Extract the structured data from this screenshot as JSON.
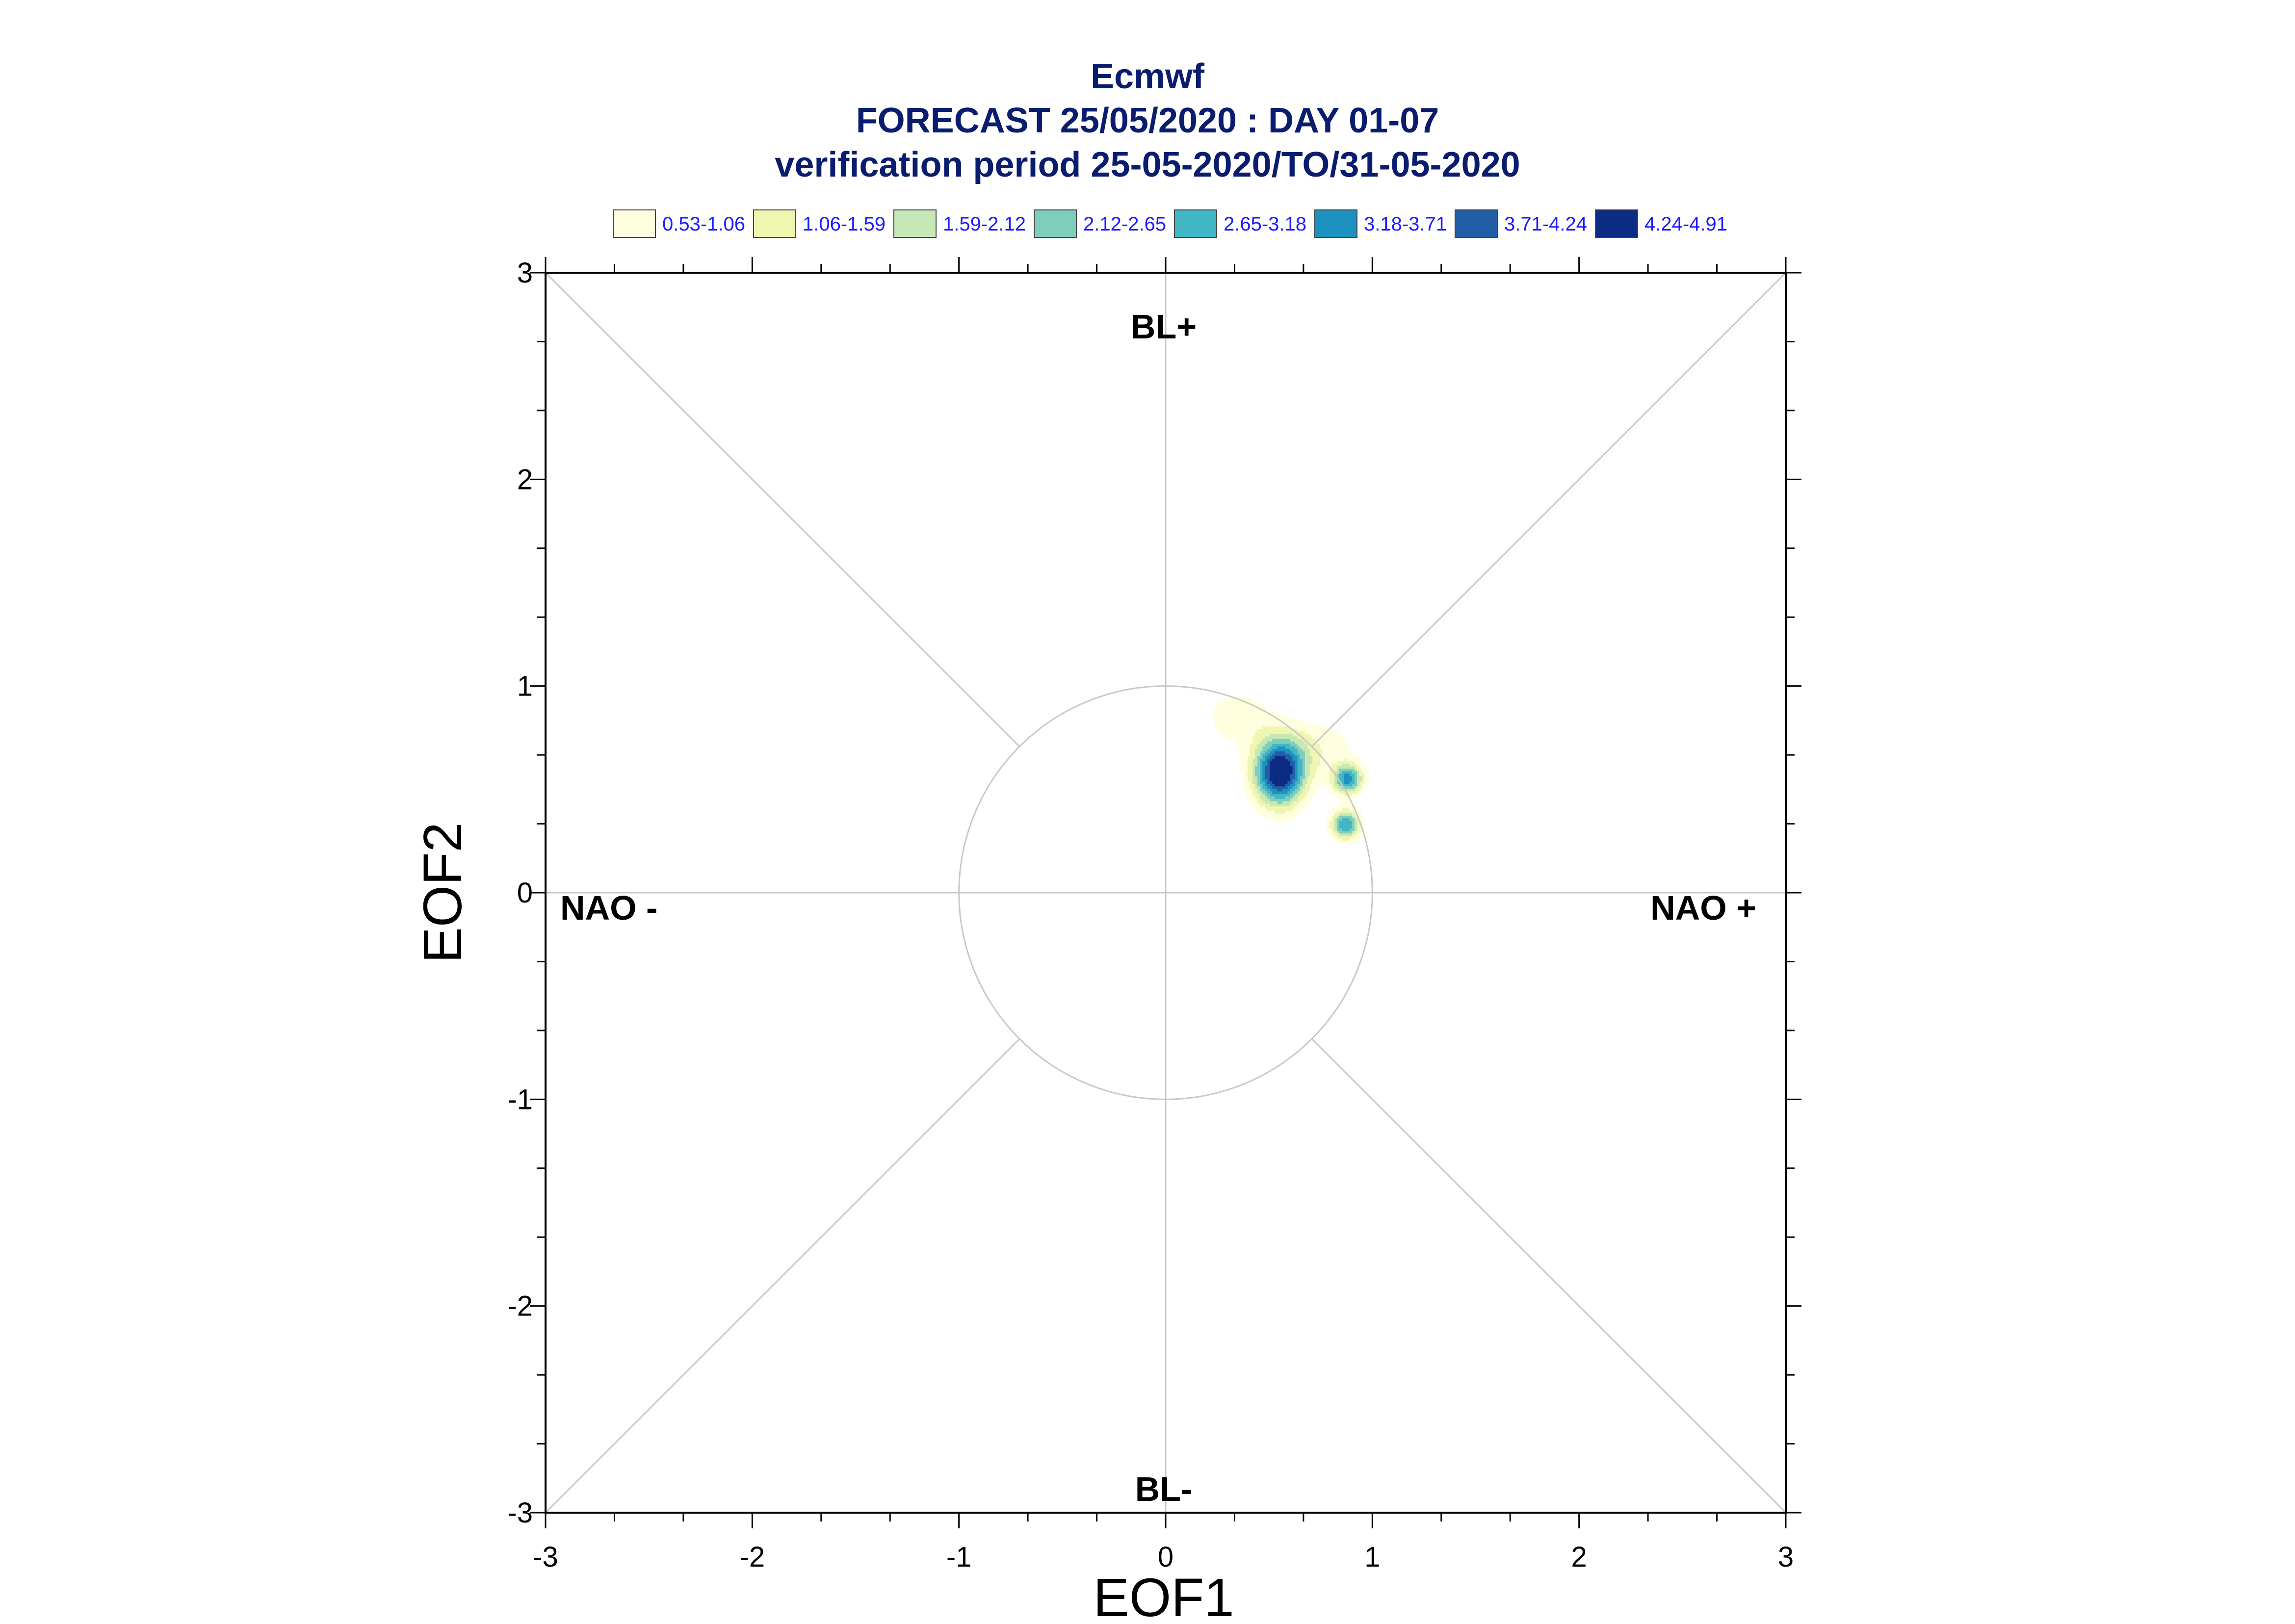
{
  "chart_data": {
    "type": "contour",
    "title_lines": [
      "Ecmwf",
      "FORECAST 25/05/2020 : DAY 01-07",
      "verification period 25-05-2020/TO/31-05-2020"
    ],
    "xlabel": "EOF1",
    "ylabel": "EOF2",
    "xlim": [
      -3,
      3
    ],
    "ylim": [
      -3,
      3
    ],
    "xticks": [
      "-3",
      "-2",
      "-1",
      "0",
      "1",
      "2",
      "3"
    ],
    "yticks": [
      "-3",
      "-2",
      "-1",
      "0",
      "1",
      "2",
      "3"
    ],
    "unit_circle_radius": 1,
    "regions": {
      "top": "BL+",
      "bottom": "BL-",
      "left": "NAO -",
      "right": "NAO +"
    },
    "legend": [
      {
        "label": "0.53-1.06",
        "color": "#ffffe0"
      },
      {
        "label": "1.06-1.59",
        "color": "#eef6b0"
      },
      {
        "label": "1.59-2.12",
        "color": "#c6e8b6"
      },
      {
        "label": "2.12-2.65",
        "color": "#7fcdbb"
      },
      {
        "label": "2.65-3.18",
        "color": "#41b6c4"
      },
      {
        "label": "3.18-3.71",
        "color": "#1d91c0"
      },
      {
        "label": "3.71-4.24",
        "color": "#225ea8"
      },
      {
        "label": "4.24-4.91",
        "color": "#0c2c84"
      }
    ],
    "density_blobs": [
      {
        "x": 0.55,
        "y": 0.58,
        "amplitude": 4.91,
        "sx": 0.085,
        "sy": 0.11
      },
      {
        "x": 0.88,
        "y": 0.55,
        "amplitude": 3.3,
        "sx": 0.05,
        "sy": 0.05
      },
      {
        "x": 0.87,
        "y": 0.33,
        "amplitude": 3.1,
        "sx": 0.05,
        "sy": 0.05
      },
      {
        "x": 0.35,
        "y": 0.85,
        "amplitude": 0.9,
        "sx": 0.12,
        "sy": 0.1
      },
      {
        "x": 0.72,
        "y": 0.7,
        "amplitude": 0.9,
        "sx": 0.15,
        "sy": 0.1
      }
    ]
  }
}
